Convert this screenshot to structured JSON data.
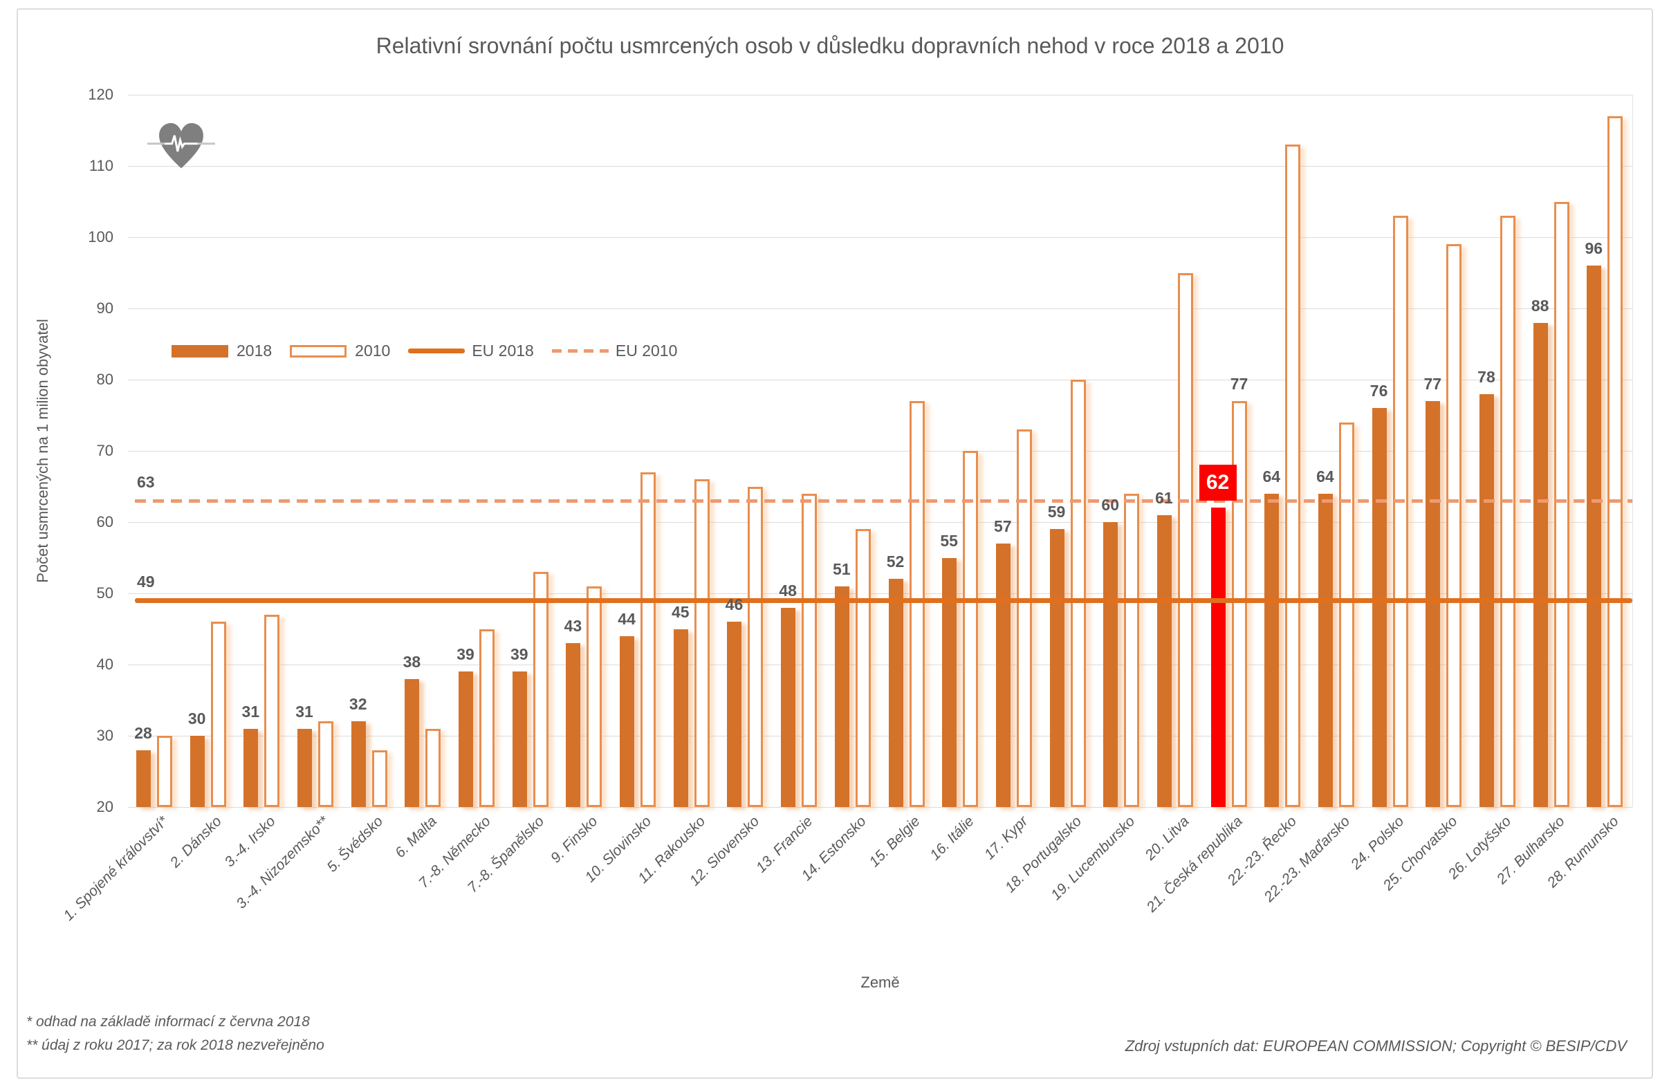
{
  "title": "Relativní srovnání počtu usmrcených osob v důsledku dopravních nehod v roce 2018 a 2010",
  "y_axis_title": "Počet usmrcených na 1 milion obyvatel",
  "x_axis_title": "Země",
  "legend": {
    "series_2018": "2018",
    "series_2010": "2010",
    "eu_2018": "EU 2018",
    "eu_2010": "EU 2010"
  },
  "footnotes": [
    "* odhad na základě informací z června 2018",
    "** údaj z roku 2017; za rok 2018 nezveřejněno"
  ],
  "source": "Zdroj vstupních dat: EUROPEAN COMMISSION; Copyright © BESIP/CDV",
  "icons": {
    "heart_ecg_icon": "gray heart with white ECG pulse line"
  },
  "colors": {
    "bar_2018": "#d4722a",
    "bar_2010_outline": "#e88e4e",
    "eu_2018_line": "#e0701e",
    "eu_2010_line": "#ef9a70",
    "highlight_red": "#fe0000",
    "gridline": "#dbdbdb",
    "text": "#595959"
  },
  "chart_data": {
    "type": "bar",
    "title": "Relativní srovnání počtu usmrcených osob v důsledku dopravních nehod v roce 2018 a 2010",
    "xlabel": "Země",
    "ylabel": "Počet usmrcených na 1 milion obyvatel",
    "ylim": [
      20,
      120
    ],
    "ytick_step": 10,
    "grid": true,
    "legend_position": "inside-top-left",
    "categories": [
      "1. Spojené království*",
      "2. Dánsko",
      "3.-4. Irsko",
      "3.-4. Nizozemsko**",
      "5. Švédsko",
      "6. Malta",
      "7.-8. Německo",
      "7.-8. Španělsko",
      "9. Finsko",
      "10. Slovinsko",
      "11. Rakousko",
      "12. Slovensko",
      "13. Francie",
      "14. Estonsko",
      "15. Belgie",
      "16. Itálie",
      "17. Kypr",
      "18. Portugalsko",
      "19. Lucembursko",
      "20. Litva",
      "21. Česká republika",
      "22.-23. Řecko",
      "22.-23. Maďarsko",
      "24. Polsko",
      "25. Chorvatsko",
      "26. Lotyšsko",
      "27. Bulharsko",
      "28. Rumunsko"
    ],
    "series": [
      {
        "name": "2018",
        "values": [
          28,
          30,
          31,
          31,
          32,
          38,
          39,
          39,
          43,
          44,
          45,
          46,
          48,
          51,
          52,
          55,
          57,
          59,
          60,
          61,
          62,
          64,
          64,
          76,
          77,
          78,
          88,
          96
        ]
      },
      {
        "name": "2010",
        "values": [
          30,
          46,
          47,
          32,
          28,
          31,
          45,
          53,
          51,
          67,
          66,
          65,
          64,
          59,
          77,
          70,
          73,
          80,
          64,
          95,
          77,
          113,
          74,
          103,
          99,
          103,
          105,
          117
        ]
      }
    ],
    "eu_lines": [
      {
        "name": "EU 2018",
        "value": 49,
        "style": "solid"
      },
      {
        "name": "EU 2010",
        "value": 63,
        "style": "dashed"
      }
    ],
    "highlight": {
      "category": "21. Česká republika",
      "index": 20,
      "color": "#fe0000",
      "label_2018": "62",
      "label_2010": "77"
    }
  }
}
